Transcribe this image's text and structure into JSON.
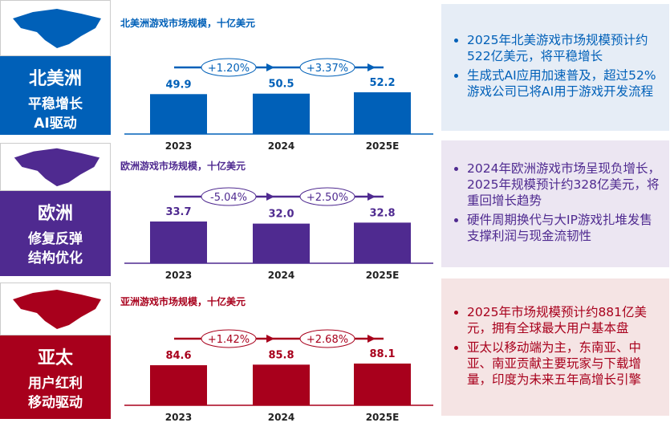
{
  "regions": [
    {
      "key": "na",
      "color": "#0060b8",
      "note_bg": "#e6edf6",
      "name": "北美洲",
      "tag1": "平稳增长",
      "tag2": "AI驱动",
      "map_icon": "north-america-map",
      "notes": [
        "2025年北美游戏市场规模预计约522亿美元，将平稳增长",
        "生成式AI应用加速普及，超过52%游戏公司已将AI用于游戏开发流程"
      ]
    },
    {
      "key": "eu",
      "color": "#4f2a90",
      "note_bg": "#ece6f2",
      "name": "欧洲",
      "tag1": "修复反弹",
      "tag2": "结构优化",
      "map_icon": "europe-map",
      "notes": [
        "2024年欧洲游戏市场呈现负增长，2025年规模预计约328亿美元，将重回增长趋势",
        "硬件周期换代与大IP游戏扎堆发售支撑利润与现金流韧性"
      ]
    },
    {
      "key": "ap",
      "color": "#a8001c",
      "note_bg": "#f5e4e4",
      "name": "亚太",
      "tag1": "用户红利",
      "tag2": "移动驱动",
      "map_icon": "asia-pacific-map",
      "notes": [
        "2025年市场规模预计约881亿美元，拥有全球最大用户基本盘",
        "亚太以移动端为主，东南亚、中亚、南亚贡献主要玩家与下载增量，印度为未来五年高增长引擎"
      ]
    }
  ],
  "chart_data": [
    {
      "type": "bar",
      "title": "北美洲游戏市场规模，十亿美元",
      "categories": [
        "2023",
        "2024",
        "2025E"
      ],
      "values": [
        49.9,
        50.5,
        52.2
      ],
      "growth": [
        "+1.20%",
        "+3.37%"
      ],
      "color": "#0060b8"
    },
    {
      "type": "bar",
      "title": "欧洲游戏市场规模，十亿美元",
      "categories": [
        "2023",
        "2024",
        "2025E"
      ],
      "values": [
        33.7,
        32.0,
        32.8
      ],
      "growth": [
        "-5.04%",
        "+2.50%"
      ],
      "color": "#4f2a90"
    },
    {
      "type": "bar",
      "title": "亚洲游戏市场规模，十亿美元",
      "categories": [
        "2023",
        "2024",
        "2025E"
      ],
      "values": [
        84.6,
        85.8,
        88.1
      ],
      "growth": [
        "+1.42%",
        "+2.68%"
      ],
      "color": "#a8001c"
    }
  ]
}
